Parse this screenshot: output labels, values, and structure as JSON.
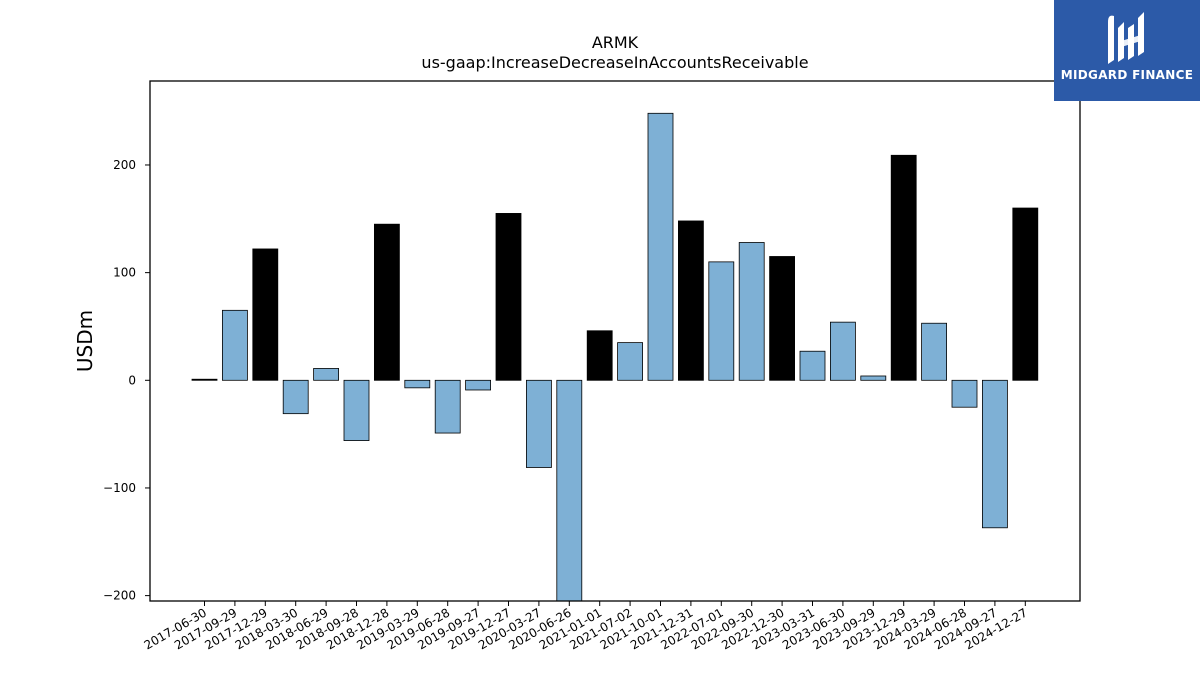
{
  "chart_data": {
    "type": "bar",
    "title": "ARMK",
    "subtitle": "us-gaap:IncreaseDecreaseInAccountsReceivable",
    "ylabel": "USDm",
    "ylim": [
      -205,
      278
    ],
    "yticks": [
      -200,
      -100,
      0,
      100,
      200
    ],
    "grid": false,
    "categories": [
      "2017-06-30",
      "2017-09-29",
      "2017-12-29",
      "2018-03-30",
      "2018-06-29",
      "2018-09-28",
      "2018-12-28",
      "2019-03-29",
      "2019-06-28",
      "2019-09-27",
      "2019-12-27",
      "2020-03-27",
      "2020-06-26",
      "2021-01-01",
      "2021-07-02",
      "2021-10-01",
      "2021-12-31",
      "2022-07-01",
      "2022-09-30",
      "2022-12-30",
      "2023-03-31",
      "2023-06-30",
      "2023-09-29",
      "2023-12-29",
      "2024-03-29",
      "2024-06-28",
      "2024-09-27",
      "2024-12-27"
    ],
    "values": [
      1,
      65,
      122,
      -31,
      11,
      -56,
      145,
      -7,
      -49,
      -9,
      155,
      -81,
      -205,
      46,
      35,
      248,
      148,
      110,
      128,
      115,
      27,
      54,
      4,
      209,
      53,
      -25,
      -137,
      160
    ],
    "bar_colors": [
      "#000000",
      "#7eb0d5",
      "#000000",
      "#7eb0d5",
      "#7eb0d5",
      "#7eb0d5",
      "#000000",
      "#7eb0d5",
      "#7eb0d5",
      "#7eb0d5",
      "#000000",
      "#7eb0d5",
      "#7eb0d5",
      "#000000",
      "#7eb0d5",
      "#7eb0d5",
      "#000000",
      "#7eb0d5",
      "#7eb0d5",
      "#000000",
      "#7eb0d5",
      "#7eb0d5",
      "#7eb0d5",
      "#000000",
      "#7eb0d5",
      "#7eb0d5",
      "#7eb0d5",
      "#000000"
    ]
  },
  "logo": {
    "text": "MIDGARD FINANCE",
    "background": "#2c5aa8"
  }
}
